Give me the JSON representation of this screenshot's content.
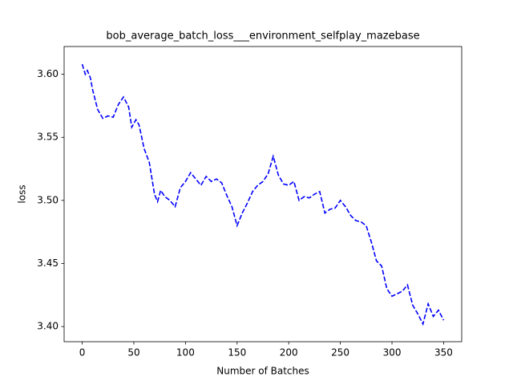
{
  "chart_data": {
    "type": "line",
    "title": "bob_average_batch_loss___environment_selfplay_mazebase",
    "xlabel": "Number of Batches",
    "ylabel": "loss",
    "x": [
      0,
      3,
      5,
      8,
      10,
      15,
      20,
      25,
      30,
      35,
      40,
      45,
      48,
      52,
      55,
      60,
      65,
      70,
      73,
      76,
      80,
      85,
      90,
      95,
      100,
      105,
      110,
      115,
      120,
      125,
      130,
      135,
      140,
      145,
      150,
      155,
      160,
      165,
      170,
      175,
      180,
      185,
      190,
      195,
      200,
      205,
      210,
      215,
      220,
      225,
      230,
      235,
      240,
      245,
      250,
      255,
      260,
      265,
      270,
      275,
      280,
      285,
      290,
      295,
      300,
      305,
      310,
      315,
      320,
      325,
      330,
      335,
      340,
      345,
      350
    ],
    "values": [
      3.608,
      3.6,
      3.603,
      3.597,
      3.588,
      3.572,
      3.565,
      3.567,
      3.566,
      3.576,
      3.582,
      3.574,
      3.558,
      3.564,
      3.56,
      3.541,
      3.53,
      3.505,
      3.499,
      3.508,
      3.503,
      3.5,
      3.495,
      3.51,
      3.515,
      3.522,
      3.517,
      3.512,
      3.519,
      3.515,
      3.517,
      3.514,
      3.504,
      3.495,
      3.48,
      3.49,
      3.498,
      3.507,
      3.512,
      3.515,
      3.521,
      3.535,
      3.52,
      3.513,
      3.512,
      3.515,
      3.5,
      3.503,
      3.502,
      3.505,
      3.507,
      3.49,
      3.493,
      3.494,
      3.5,
      3.495,
      3.488,
      3.484,
      3.483,
      3.48,
      3.467,
      3.452,
      3.448,
      3.43,
      3.424,
      3.426,
      3.428,
      3.433,
      3.417,
      3.41,
      3.402,
      3.418,
      3.408,
      3.413,
      3.405
    ],
    "color": "#0000ff",
    "linestyle": "dashed",
    "xlim": [
      -17.5,
      367.5
    ],
    "xticks": [
      0,
      50,
      100,
      150,
      200,
      250,
      300,
      350
    ],
    "ylim": [
      3.388,
      3.622
    ],
    "yticks": [
      {
        "value": 3.4,
        "label": "3.40"
      },
      {
        "value": 3.45,
        "label": "3.45"
      },
      {
        "value": 3.5,
        "label": "3.50"
      },
      {
        "value": 3.55,
        "label": "3.55"
      },
      {
        "value": 3.6,
        "label": "3.60"
      }
    ]
  }
}
